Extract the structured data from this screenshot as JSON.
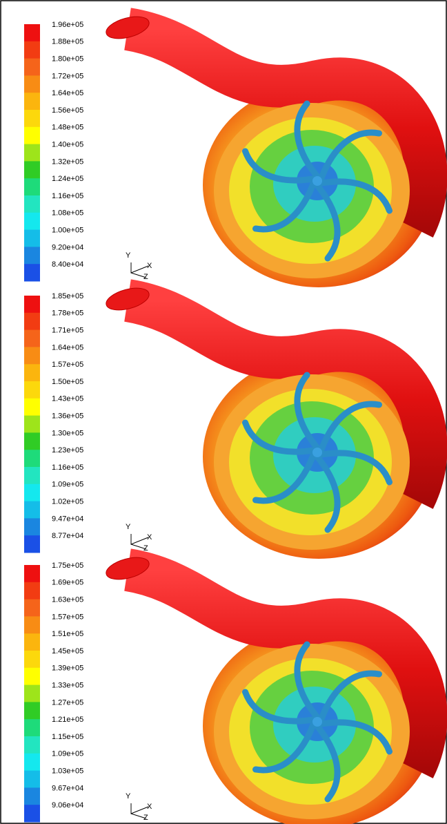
{
  "panels": [
    {
      "legend": {
        "labels": [
          "1.96e+05",
          "1.88e+05",
          "1.80e+05",
          "1.72e+05",
          "1.64e+05",
          "1.56e+05",
          "1.48e+05",
          "1.40e+05",
          "1.32e+05",
          "1.24e+05",
          "1.16e+05",
          "1.08e+05",
          "1.00e+05",
          "9.20e+04",
          "8.40e+04"
        ]
      },
      "triad": {
        "y": "Y",
        "x": "X",
        "z": "Z"
      }
    },
    {
      "legend": {
        "labels": [
          "1.85e+05",
          "1.78e+05",
          "1.71e+05",
          "1.64e+05",
          "1.57e+05",
          "1.50e+05",
          "1.43e+05",
          "1.36e+05",
          "1.30e+05",
          "1.23e+05",
          "1.16e+05",
          "1.09e+05",
          "1.02e+05",
          "9.47e+04",
          "8.77e+04"
        ]
      },
      "triad": {
        "y": "Y",
        "x": "X",
        "z": "Z"
      }
    },
    {
      "legend": {
        "labels": [
          "1.75e+05",
          "1.69e+05",
          "1.63e+05",
          "1.57e+05",
          "1.51e+05",
          "1.45e+05",
          "1.39e+05",
          "1.33e+05",
          "1.27e+05",
          "1.21e+05",
          "1.15e+05",
          "1.09e+05",
          "1.03e+05",
          "9.67e+04",
          "9.06e+04"
        ]
      },
      "triad": {
        "y": "Y",
        "x": "X",
        "z": "Z"
      }
    }
  ]
}
